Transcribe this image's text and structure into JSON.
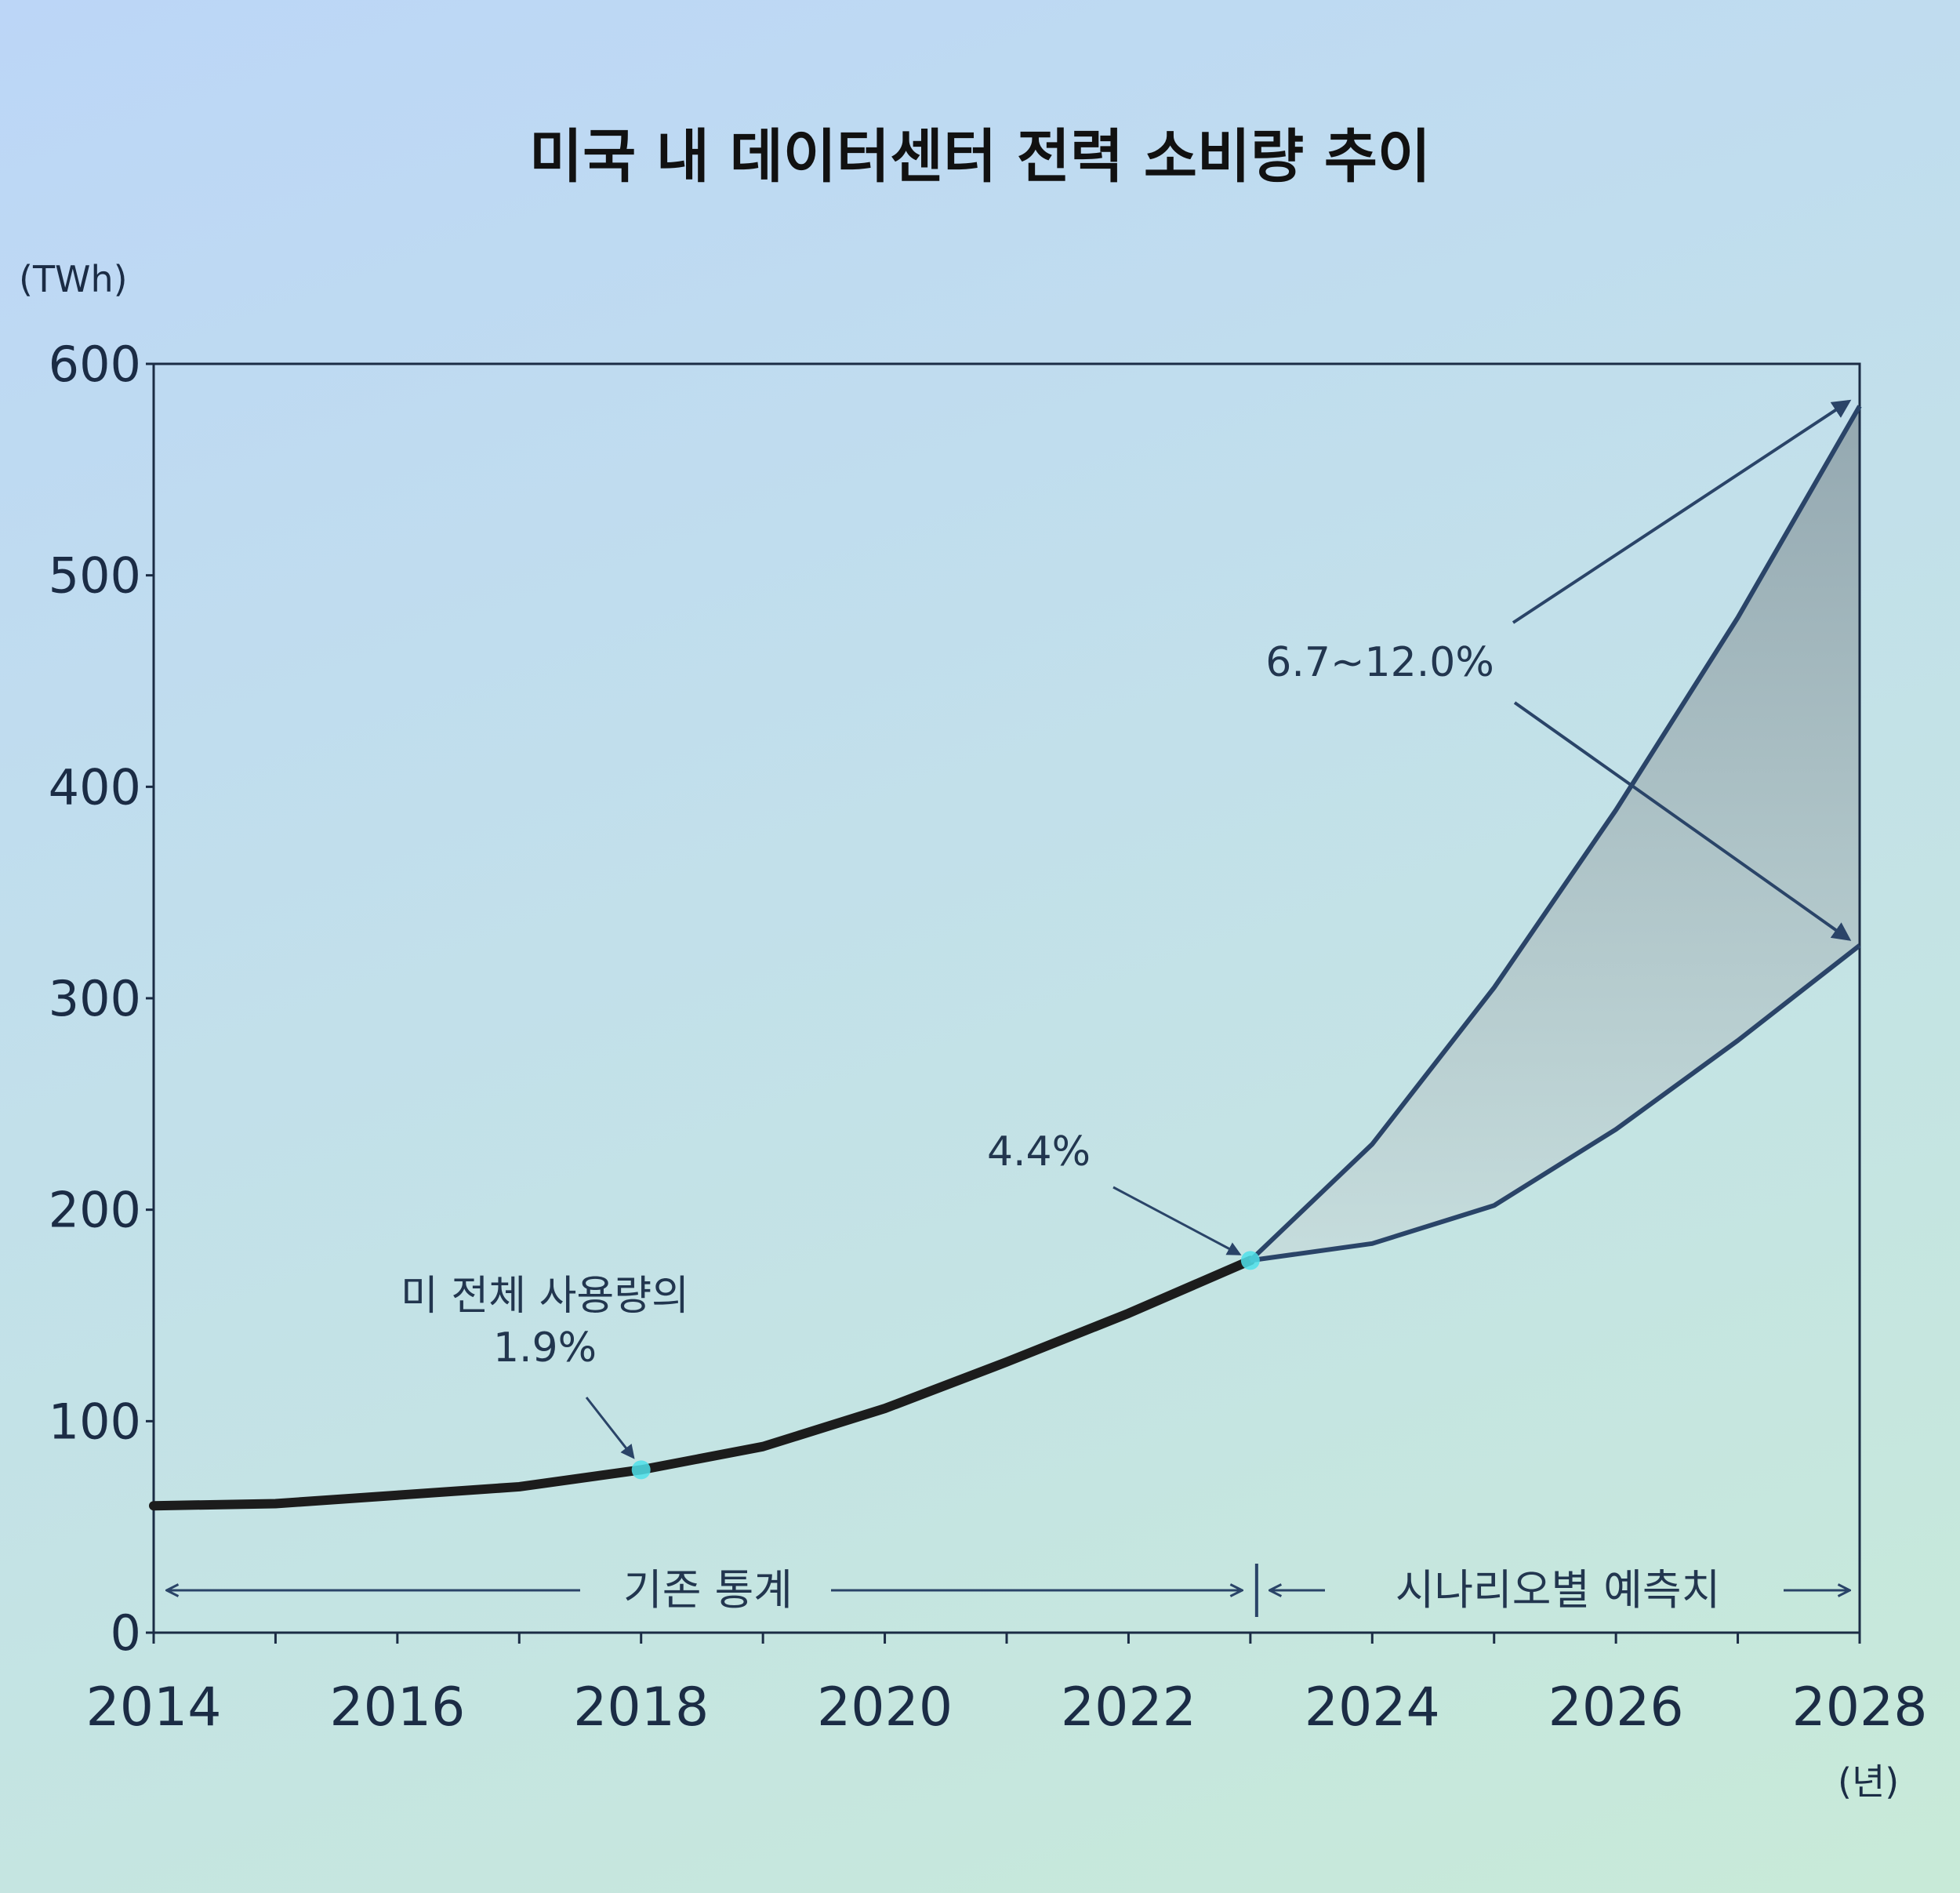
{
  "chart_data": {
    "type": "line",
    "title": "미국 내 데이터센터 전력 소비량 추이",
    "ylabel": "(TWh)",
    "xlabel": "(년)",
    "xlim": [
      2014,
      2028
    ],
    "ylim": [
      0,
      600
    ],
    "x_ticks": [
      "2014",
      "2016",
      "2018",
      "2020",
      "2022",
      "2024",
      "2026",
      "2028"
    ],
    "y_ticks": [
      "0",
      "100",
      "200",
      "300",
      "400",
      "500",
      "600"
    ],
    "grid": false,
    "series": [
      {
        "name": "기존 통계",
        "x": [
          2014,
          2015,
          2016,
          2017,
          2018,
          2019,
          2020,
          2021,
          2022,
          2023
        ],
        "values": [
          60,
          61,
          65,
          69,
          77,
          88,
          106,
          128,
          151,
          176
        ]
      },
      {
        "name": "",
        "x": [
          2023,
          2024,
          2025,
          2026,
          2027,
          2028
        ],
        "values": [
          176,
          231,
          305,
          389,
          480,
          580
        ]
      },
      {
        "name": "",
        "x": [
          2023,
          2024,
          2025,
          2026,
          2027,
          2028
        ],
        "values": [
          176,
          184,
          202,
          238,
          280,
          325
        ]
      }
    ],
    "annotations": [
      {
        "lines": [
          "미 전체 사용량의",
          "1.9%"
        ],
        "x": 2018,
        "y": 77
      },
      {
        "lines": [
          "4.4%"
        ],
        "x": 2023,
        "y": 176
      },
      {
        "lines": [
          "6.7~12.0%"
        ],
        "targets": [
          [
            2028,
            580
          ],
          [
            2028,
            325
          ]
        ]
      }
    ],
    "periods": [
      {
        "label": "기존 통계",
        "from": 2014,
        "to": 2023
      },
      {
        "label": "시나리오별 예측치",
        "from": 2023,
        "to": 2028
      }
    ],
    "colors": {
      "historical_line": "#1c1c1c",
      "projection_line": "#2a4468",
      "band_fill_top": "#8fa2aa",
      "band_fill_bottom": "#c6dcdc",
      "axis": "#1b2c45",
      "highlight_dot": "#4fe0ea"
    }
  }
}
